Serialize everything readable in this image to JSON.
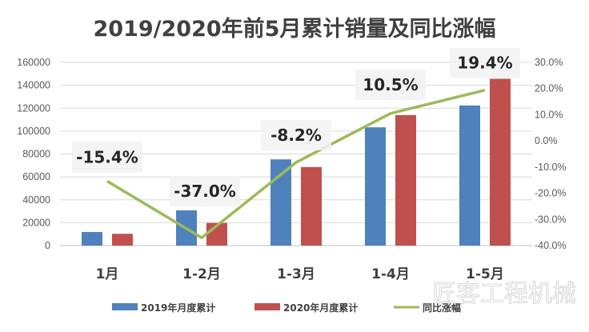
{
  "chart_data": {
    "type": "bar+line",
    "title": "2019/2020年前5月累计销量及同比涨幅",
    "categories": [
      "1月",
      "1-2月",
      "1-3月",
      "1-4月",
      "1-5月"
    ],
    "series": [
      {
        "name": "2019年月度累计",
        "type": "bar",
        "axis": "left",
        "color": "#4f81bd",
        "values": [
          11900,
          30800,
          75300,
          103300,
          122400
        ]
      },
      {
        "name": "2020年月度累计",
        "type": "bar",
        "axis": "right-none",
        "color": "#c0504d",
        "values": [
          10300,
          19800,
          68600,
          114000,
          145700
        ]
      },
      {
        "name": "同比涨幅",
        "type": "line",
        "axis": "right",
        "color": "#9bbb59",
        "values": [
          -15.4,
          -37.0,
          -8.2,
          10.5,
          19.4
        ],
        "labels": [
          "-15.4%",
          "-37.0%",
          "-8.2%",
          "10.5%",
          "19.4%"
        ]
      }
    ],
    "left_axis": {
      "ylim": [
        0,
        160000
      ],
      "ticks": [
        "0",
        "20000",
        "40000",
        "60000",
        "80000",
        "100000",
        "120000",
        "140000",
        "160000"
      ]
    },
    "right_axis": {
      "ylim": [
        -40,
        30
      ],
      "ticks": [
        "-40.0%",
        "-30.0%",
        "-20.0%",
        "-10.0%",
        "0.0%",
        "10.0%",
        "20.0%",
        "30.0%"
      ]
    },
    "grid": true,
    "legend": "bottom"
  },
  "watermark": "匠客工程机械"
}
